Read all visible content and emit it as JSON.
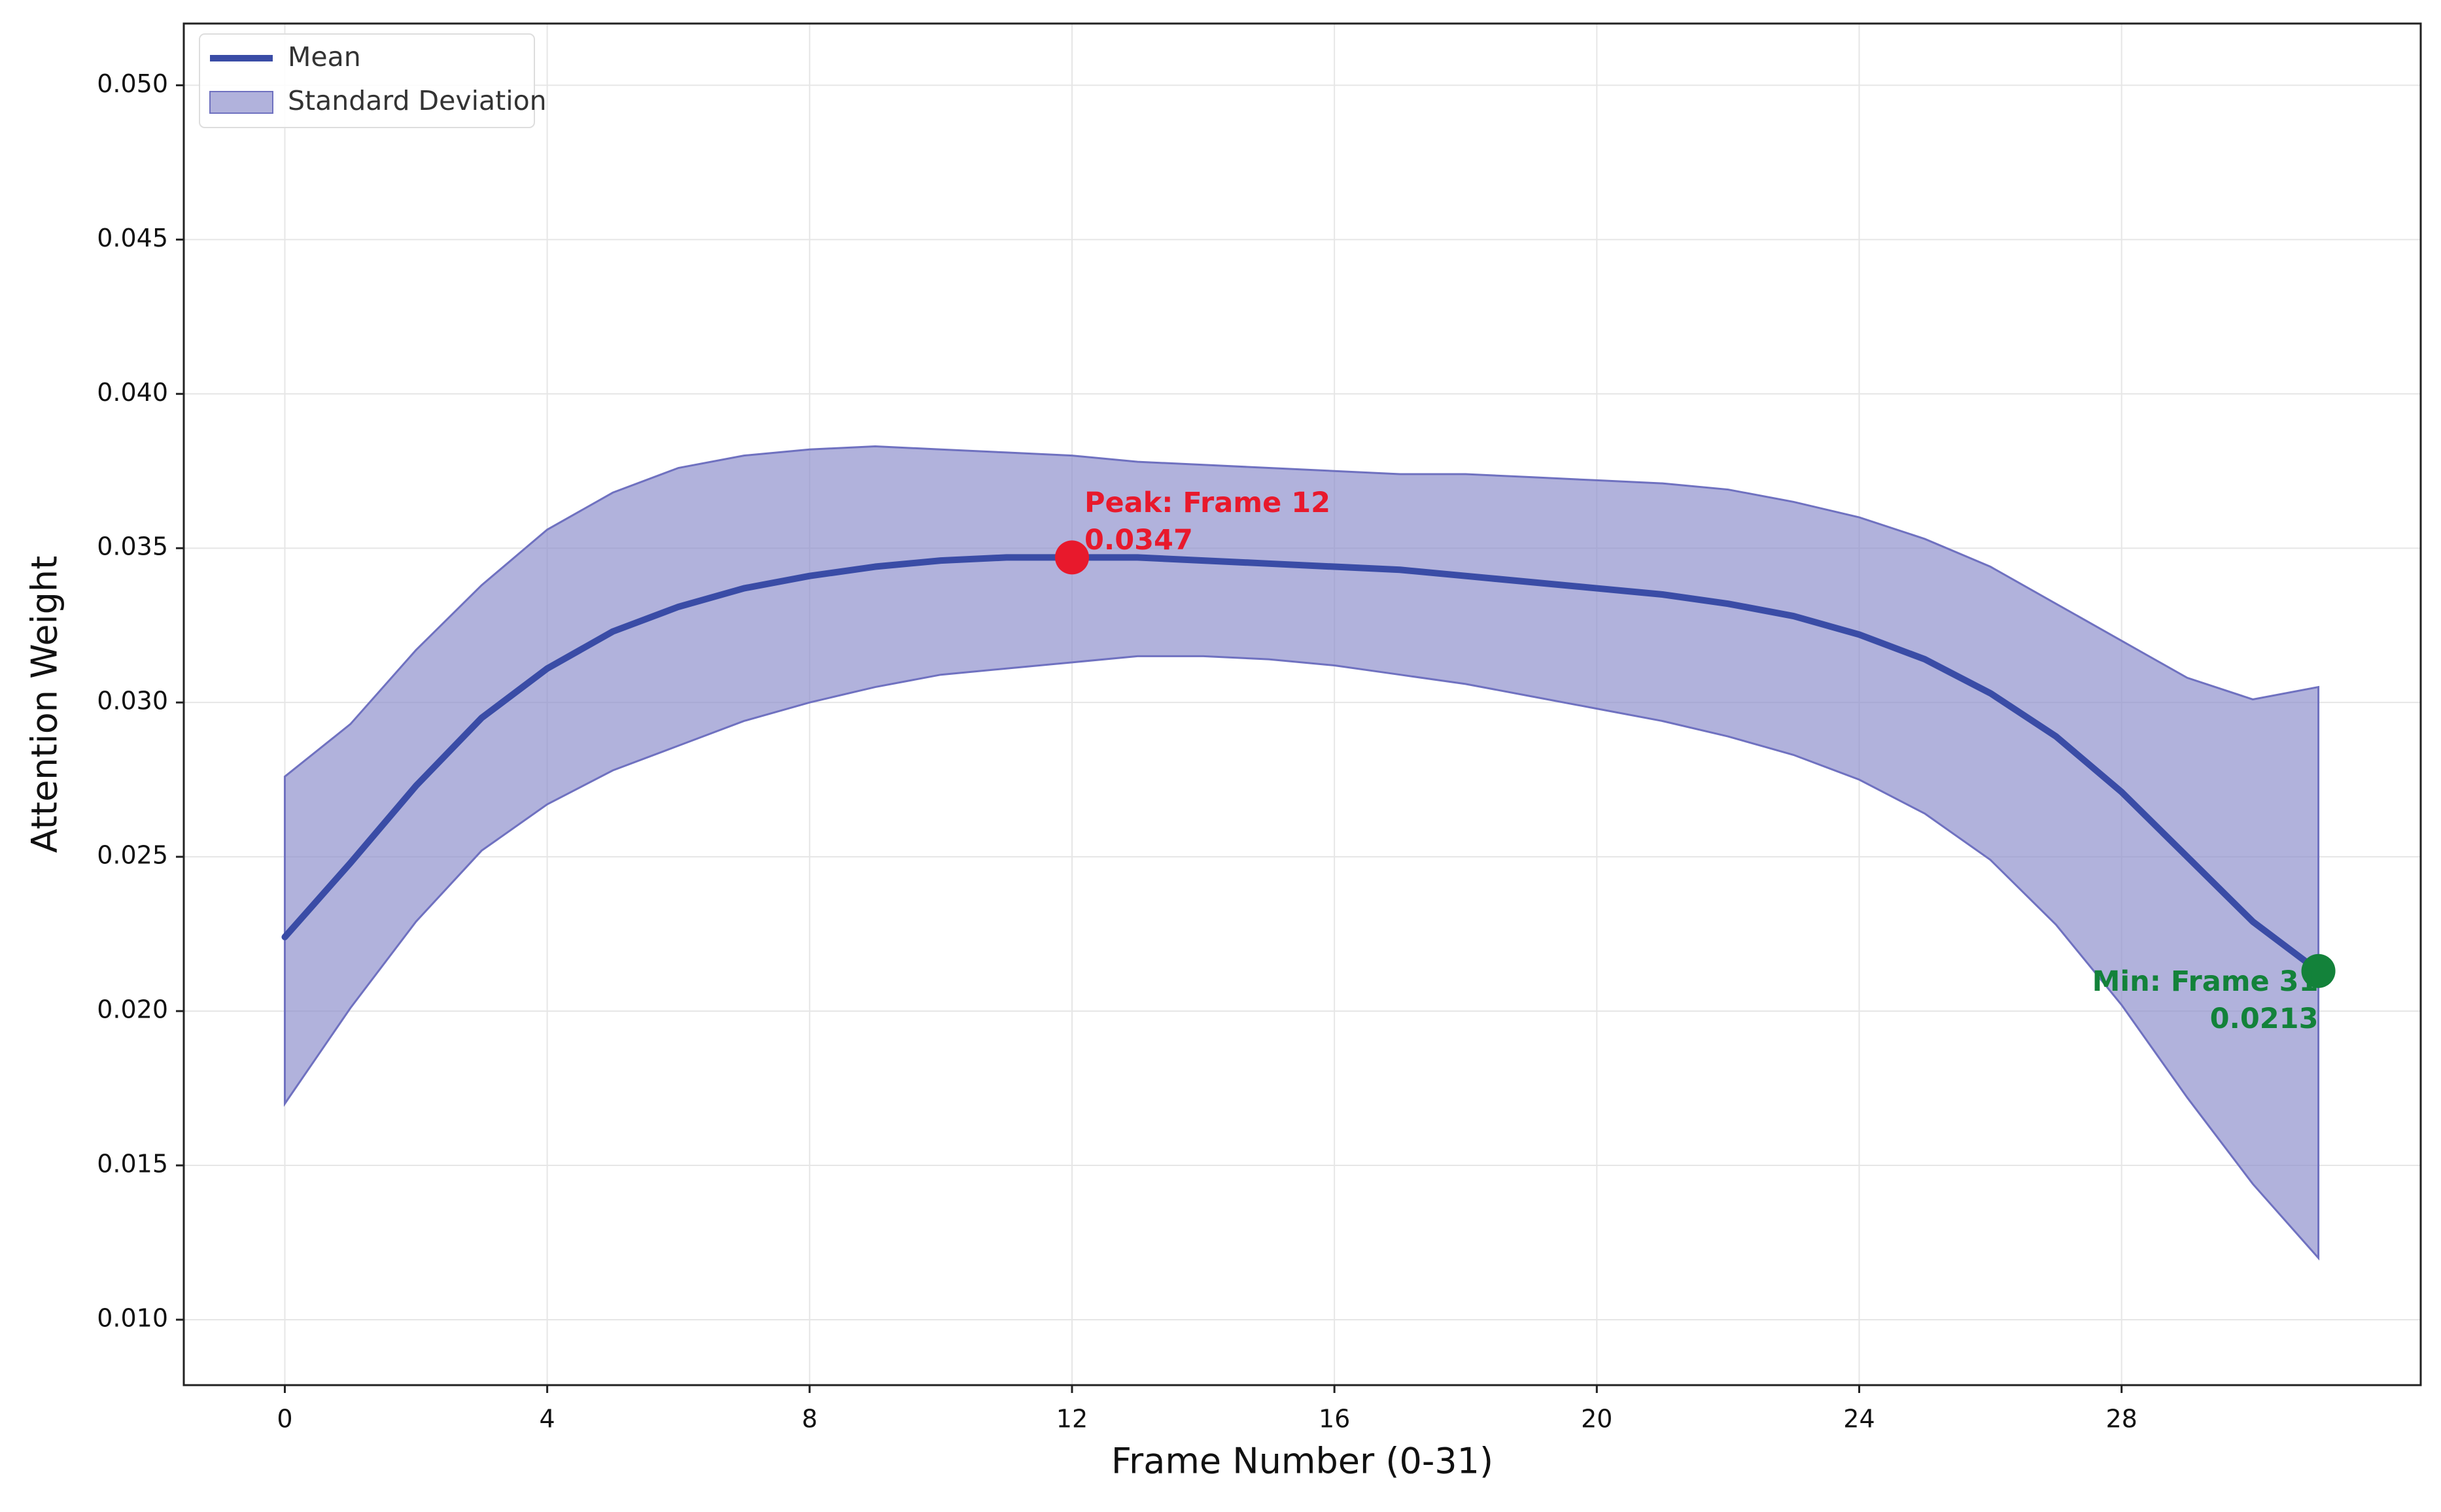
{
  "chart_data": {
    "type": "line",
    "x_label": "Frame Number (0-31)",
    "y_label": "Attention Weight",
    "x": [
      0,
      1,
      2,
      3,
      4,
      5,
      6,
      7,
      8,
      9,
      10,
      11,
      12,
      13,
      14,
      15,
      16,
      17,
      18,
      19,
      20,
      21,
      22,
      23,
      24,
      25,
      26,
      27,
      28,
      29,
      30,
      31
    ],
    "series": [
      {
        "name": "Mean",
        "color": "#3a4ca6",
        "values": [
          0.0224,
          0.0248,
          0.0273,
          0.0295,
          0.0311,
          0.0323,
          0.0331,
          0.0337,
          0.0341,
          0.0344,
          0.0346,
          0.0347,
          0.0347,
          0.0347,
          0.0346,
          0.0345,
          0.0344,
          0.0343,
          0.0341,
          0.0339,
          0.0337,
          0.0335,
          0.0332,
          0.0328,
          0.0322,
          0.0314,
          0.0303,
          0.0289,
          0.0271,
          0.025,
          0.0229,
          0.0213
        ]
      }
    ],
    "band": {
      "name": "Standard Deviation",
      "color": "#8c8dcc",
      "edge_color": "#6f71c0",
      "upper": [
        0.0276,
        0.0293,
        0.0317,
        0.0338,
        0.0356,
        0.0368,
        0.0376,
        0.038,
        0.0382,
        0.0383,
        0.0382,
        0.0381,
        0.038,
        0.0378,
        0.0377,
        0.0376,
        0.0375,
        0.0374,
        0.0374,
        0.0373,
        0.0372,
        0.0371,
        0.0369,
        0.0365,
        0.036,
        0.0353,
        0.0344,
        0.0332,
        0.032,
        0.0308,
        0.0301,
        0.0305
      ],
      "lower": [
        0.017,
        0.0201,
        0.0229,
        0.0252,
        0.0267,
        0.0278,
        0.0286,
        0.0294,
        0.03,
        0.0305,
        0.0309,
        0.0311,
        0.0313,
        0.0315,
        0.0315,
        0.0314,
        0.0312,
        0.0309,
        0.0306,
        0.0302,
        0.0298,
        0.0294,
        0.0289,
        0.0283,
        0.0275,
        0.0264,
        0.0249,
        0.0228,
        0.0202,
        0.0172,
        0.0144,
        0.012
      ]
    },
    "annotations": [
      {
        "label": [
          "Peak: Frame 12",
          "0.0347"
        ],
        "x": 12,
        "y": 0.0347,
        "color": "#e8192c"
      },
      {
        "label": [
          "Min: Frame 31",
          "0.0213"
        ],
        "x": 31,
        "y": 0.0213,
        "color": "#13823a"
      }
    ],
    "xlim": [
      -1.54,
      32.56
    ],
    "ylim": [
      0.00788,
      0.052
    ],
    "xticks": [
      0,
      4,
      8,
      12,
      16,
      20,
      24,
      28
    ],
    "yticks": [
      {
        "value": 0.01,
        "label": "0.010"
      },
      {
        "value": 0.015,
        "label": "0.015"
      },
      {
        "value": 0.02,
        "label": "0.020"
      },
      {
        "value": 0.025,
        "label": "0.025"
      },
      {
        "value": 0.03,
        "label": "0.030"
      },
      {
        "value": 0.035,
        "label": "0.035"
      },
      {
        "value": 0.04,
        "label": "0.040"
      },
      {
        "value": 0.045,
        "label": "0.045"
      },
      {
        "value": 0.05,
        "label": "0.050"
      }
    ],
    "grid": true,
    "legend": "upper left"
  }
}
